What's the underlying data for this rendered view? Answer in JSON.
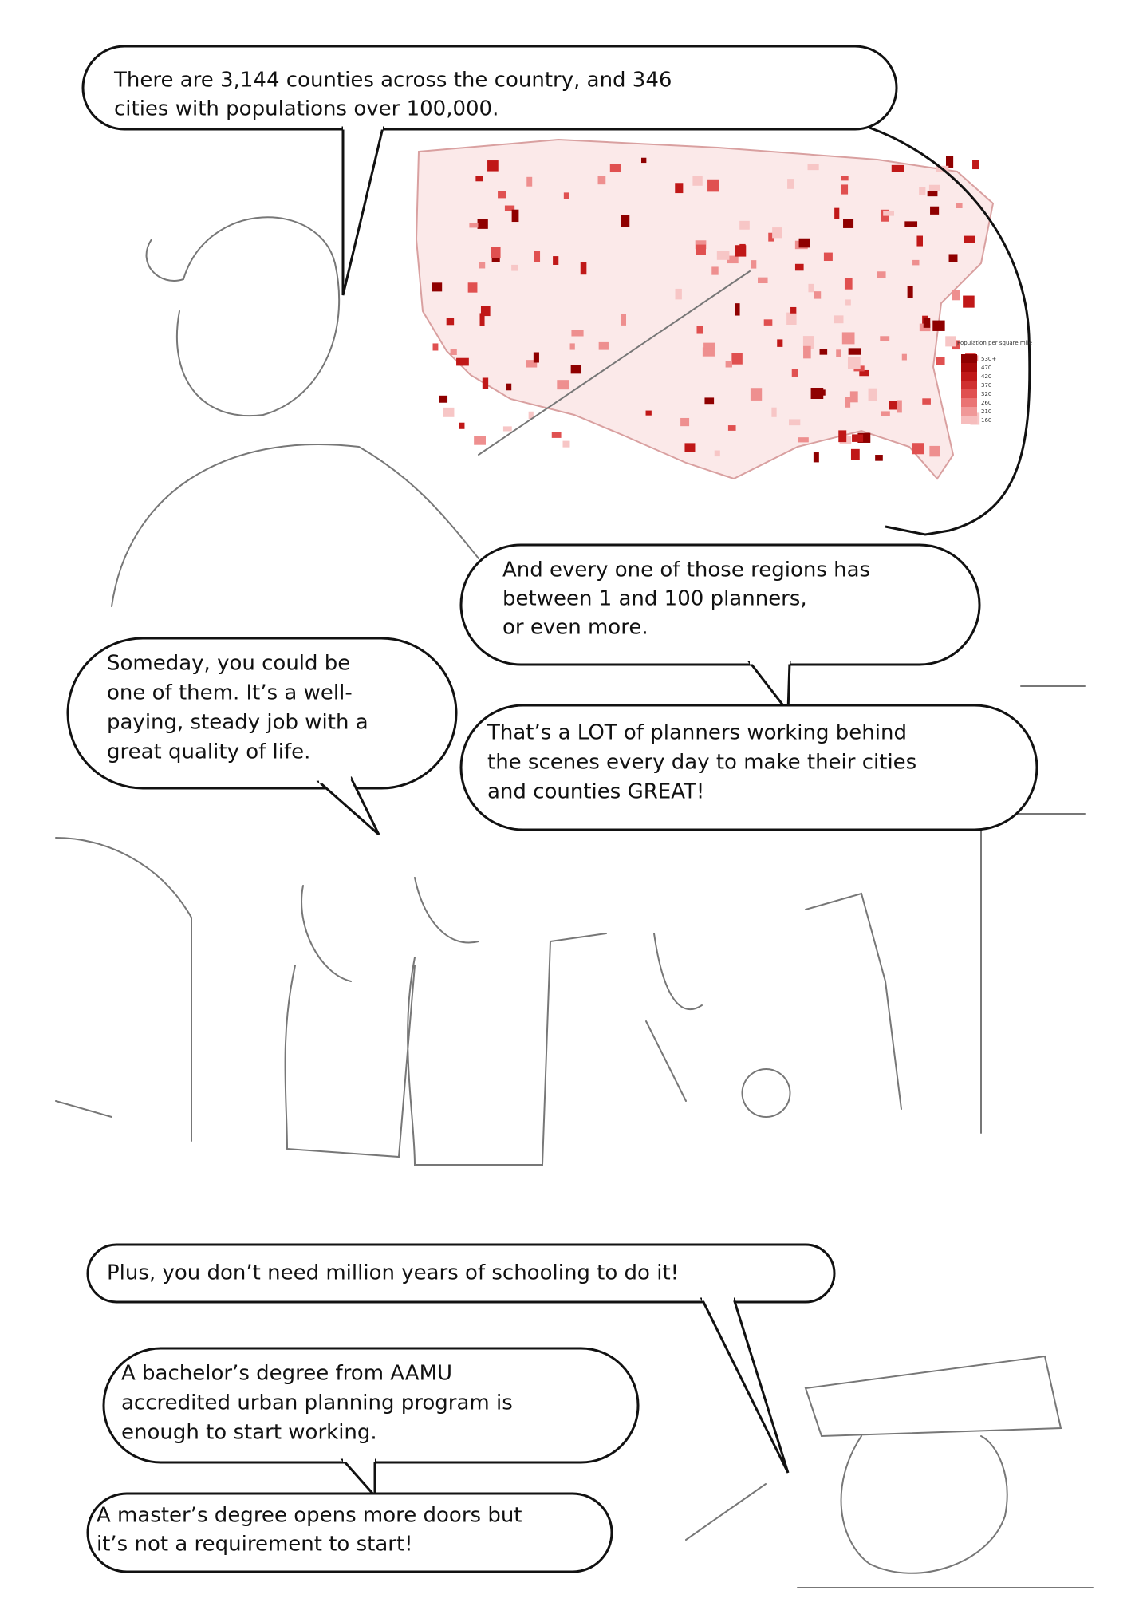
{
  "bubbles": [
    {
      "lines": [
        "There are 3,144 counties across the country, and 346",
        "cities with populations over 100,000."
      ]
    },
    {
      "lines": [
        "And every one of those regions has",
        "between 1 and 100 planners,",
        "or even more."
      ]
    },
    {
      "lines": [
        "Someday, you could be",
        "one of them. It’s a well-",
        "paying, steady job with a",
        "great quality of life."
      ]
    },
    {
      "lines": [
        "That’s a LOT of planners working behind",
        "the scenes every day to make their cities",
        "and counties GREAT!"
      ]
    },
    {
      "lines": [
        "Plus, you don’t need million years of schooling to do it!"
      ]
    },
    {
      "lines": [
        "A bachelor’s degree from AAMU",
        "accredited urban planning program is",
        "enough to start working."
      ]
    },
    {
      "lines": [
        "A master’s degree opens more doors but",
        "it’s not a requirement to start!"
      ]
    }
  ],
  "map_legend": {
    "title": "Population per square mile",
    "labels": [
      "530+",
      "470",
      "420",
      "370",
      "320",
      "260",
      "210",
      "160"
    ]
  }
}
